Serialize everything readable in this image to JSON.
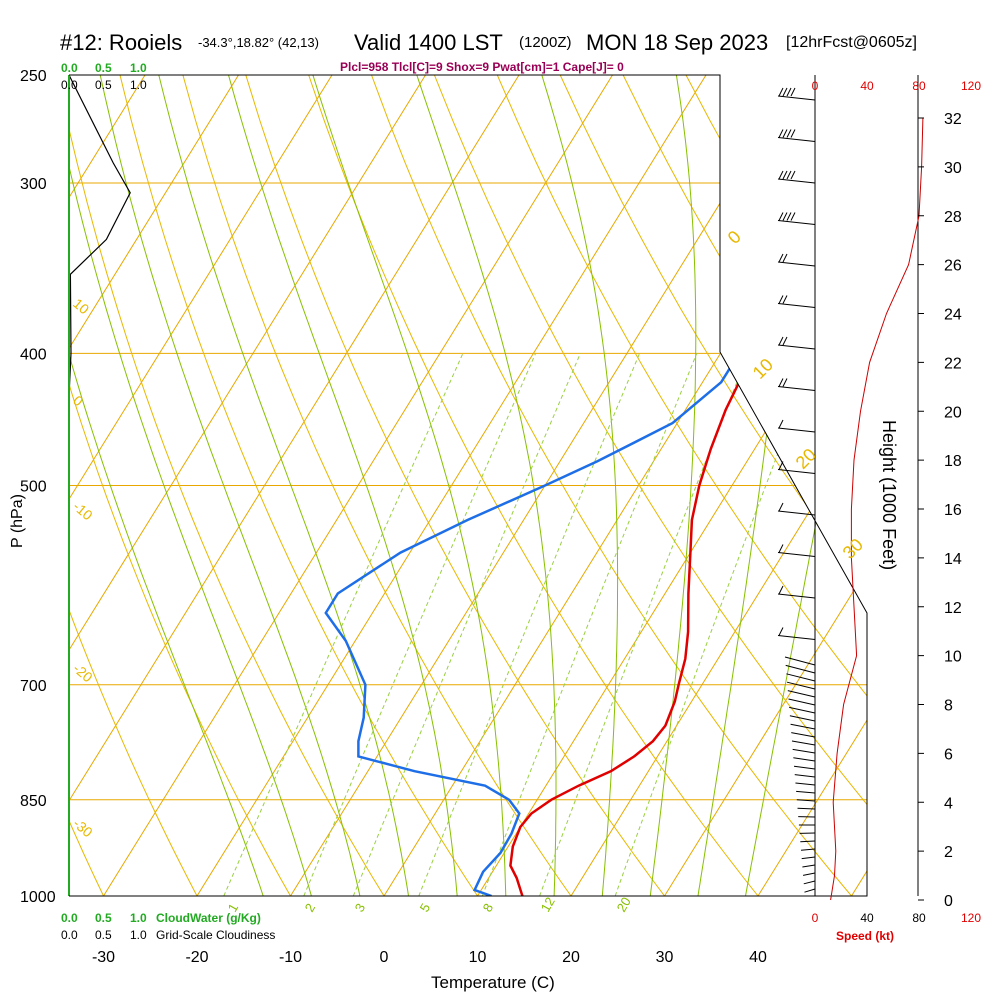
{
  "title": {
    "station": "#12: Rooiels",
    "coords": "-34.3°,18.82° (42,13)",
    "valid": "Valid 1400 LST",
    "utc": "(1200Z)",
    "date": "MON 18 Sep 2023",
    "forecast": "[12hrFcst@0605z]"
  },
  "indices": "Plcl=958 Tlcl[C]=9 Shox=9 Pwat[cm]=1 Cape[J]= 0",
  "cloud_scale": {
    "values": [
      "0.0",
      "0.5",
      "1.0"
    ]
  },
  "cloudwater_label": "CloudWater (g/Kg)",
  "cloudiness_label": "Grid-Scale Cloudiness",
  "speed_label": "Speed (kt)",
  "colors": {
    "temperature": "#e00000",
    "dewpoint": "#1e6ee8",
    "isotherm": "#e8a800",
    "dry_adiabat": "#e8b800",
    "moist_adiabat": "#88c000",
    "mixing_ratio": "#9ad040"
  },
  "chart_data": {
    "type": "line",
    "title": "",
    "xlabel": "Temperature (C)",
    "ylabel": "P (hPa)",
    "y2label": "Height (1000 Feet)",
    "x_ticks": [
      -30,
      -20,
      -10,
      0,
      10,
      20,
      30,
      40
    ],
    "p_ticks": [
      250,
      300,
      400,
      500,
      700,
      850,
      1000
    ],
    "height_ticks": [
      0,
      2,
      4,
      6,
      8,
      10,
      12,
      14,
      16,
      18,
      20,
      22,
      24,
      26,
      28,
      30,
      32
    ],
    "speed_ticks": [
      0,
      40,
      80,
      120
    ],
    "skew_labels": [
      "10",
      "0",
      "-10",
      "-20",
      "-30"
    ],
    "dry_labels": [
      "0",
      "10",
      "20",
      "30"
    ],
    "mixing_labels": [
      "1",
      "2",
      "3",
      "5",
      "8",
      "12",
      "20"
    ],
    "series": [
      {
        "name": "",
        "values_T": [
          [
            1000,
            14.8
          ],
          [
            990,
            14.2
          ],
          [
            970,
            13.0
          ],
          [
            950,
            11.5
          ],
          [
            920,
            10.5
          ],
          [
            890,
            10.0
          ],
          [
            870,
            10.3
          ],
          [
            850,
            11.5
          ],
          [
            830,
            13.5
          ],
          [
            810,
            16.0
          ],
          [
            790,
            17.5
          ],
          [
            770,
            18.5
          ],
          [
            750,
            18.8
          ],
          [
            720,
            18.2
          ],
          [
            700,
            17.5
          ],
          [
            670,
            16.5
          ],
          [
            640,
            15.0
          ],
          [
            600,
            12.5
          ],
          [
            560,
            10.0
          ],
          [
            530,
            8.0
          ],
          [
            500,
            6.5
          ],
          [
            470,
            5.3
          ],
          [
            440,
            4.3
          ],
          [
            400,
            3.5
          ],
          [
            370,
            2.8
          ],
          [
            340,
            2.0
          ],
          [
            320,
            1.0
          ],
          [
            300,
            0.5
          ],
          [
            280,
            0.5
          ],
          [
            265,
            0.5
          ]
        ]
      },
      {
        "name": "",
        "values_Td": [
          [
            1000,
            11.5
          ],
          [
            990,
            9.3
          ],
          [
            960,
            9.0
          ],
          [
            930,
            9.6
          ],
          [
            900,
            9.5
          ],
          [
            870,
            9.0
          ],
          [
            850,
            7.0
          ],
          [
            830,
            3.5
          ],
          [
            810,
            -5.0
          ],
          [
            790,
            -12.0
          ],
          [
            770,
            -13.0
          ],
          [
            740,
            -14.0
          ],
          [
            700,
            -16.0
          ],
          [
            650,
            -21.0
          ],
          [
            620,
            -25.0
          ],
          [
            600,
            -25.0
          ],
          [
            560,
            -21.0
          ],
          [
            530,
            -16.0
          ],
          [
            500,
            -10.0
          ],
          [
            480,
            -6.0
          ],
          [
            450,
            -0.5
          ],
          [
            420,
            2.0
          ],
          [
            400,
            2.0
          ],
          [
            380,
            1.5
          ],
          [
            350,
            0.3
          ],
          [
            320,
            -1.0
          ],
          [
            300,
            -2.0
          ],
          [
            270,
            -3.5
          ],
          [
            265,
            -3.8
          ]
        ]
      }
    ],
    "cloud_profile": [
      [
        250,
        0.0
      ],
      [
        290,
        0.65
      ],
      [
        305,
        0.9
      ],
      [
        330,
        0.55
      ],
      [
        350,
        0.02
      ],
      [
        400,
        0.03
      ],
      [
        430,
        0.0
      ]
    ],
    "wind_speed_profile": [
      [
        0,
        12
      ],
      [
        1,
        15
      ],
      [
        2,
        16
      ],
      [
        3,
        15
      ],
      [
        4,
        14
      ],
      [
        6,
        17
      ],
      [
        8,
        22
      ],
      [
        10,
        32
      ],
      [
        12,
        30
      ],
      [
        14,
        28
      ],
      [
        16,
        28
      ],
      [
        18,
        30
      ],
      [
        20,
        35
      ],
      [
        22,
        42
      ],
      [
        24,
        55
      ],
      [
        26,
        72
      ],
      [
        28,
        80
      ],
      [
        30,
        82
      ],
      [
        32,
        83
      ]
    ]
  }
}
